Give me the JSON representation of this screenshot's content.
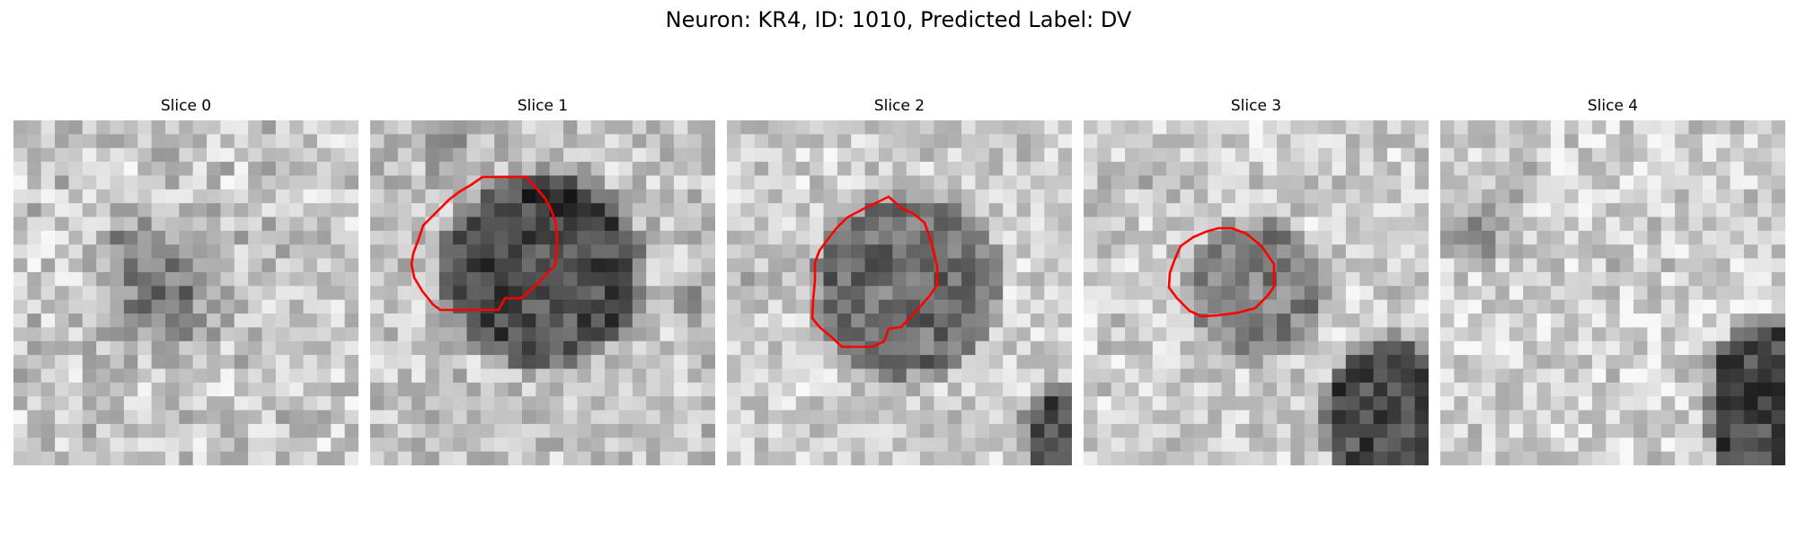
{
  "figure": {
    "title": "Neuron: KR4, ID: 1010, Predicted Label: DV"
  },
  "panels": [
    {
      "title": "Slice 0",
      "has_outline": false
    },
    {
      "title": "Slice 1",
      "has_outline": true
    },
    {
      "title": "Slice 2",
      "has_outline": true
    },
    {
      "title": "Slice 3",
      "has_outline": true
    },
    {
      "title": "Slice 4",
      "has_outline": false
    }
  ],
  "colors": {
    "outline": "#ff0000",
    "background": "#ffffff"
  }
}
